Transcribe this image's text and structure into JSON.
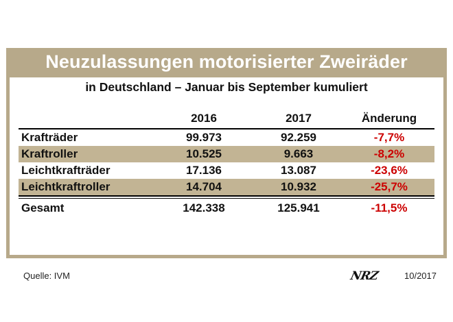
{
  "title": "Neuzulassungen motorisierter Zweiräder",
  "subtitle": "in Deutschland – Januar bis September kumuliert",
  "table": {
    "headers": [
      "",
      "2016",
      "2017",
      "Änderung"
    ],
    "rows": [
      {
        "label": "Krafträder",
        "y2016": "99.973",
        "y2017": "92.259",
        "change": "-7,7%",
        "shaded": false
      },
      {
        "label": "Kraftroller",
        "y2016": "10.525",
        "y2017": "9.663",
        "change": "-8,2%",
        "shaded": true
      },
      {
        "label": "Leichtkrafträder",
        "y2016": "17.136",
        "y2017": "13.087",
        "change": "-23,6%",
        "shaded": false
      },
      {
        "label": "Leichtkraftroller",
        "y2016": "14.704",
        "y2017": "10.932",
        "change": "-25,7%",
        "shaded": true
      }
    ],
    "total": {
      "label": "Gesamt",
      "y2016": "142.338",
      "y2017": "125.941",
      "change": "-11,5%"
    }
  },
  "footer": {
    "source": "Quelle: IVM",
    "logo": "NRZ",
    "date": "10/2017"
  },
  "colors": {
    "frame": "#b7a98a",
    "shaded_row": "#c2b494",
    "negative": "#cc0000"
  }
}
